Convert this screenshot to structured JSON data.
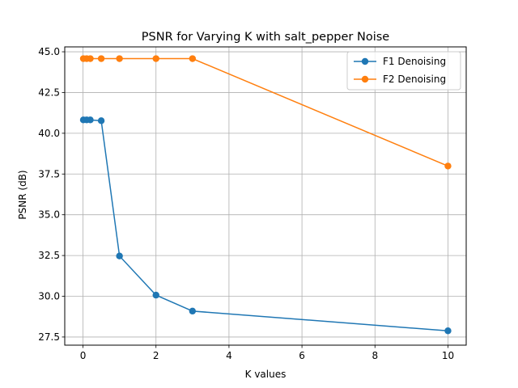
{
  "chart_data": {
    "type": "line",
    "title": "PSNR for Varying K with salt_pepper Noise",
    "xlabel": "K values",
    "ylabel": "PSNR (dB)",
    "xlim": [
      -0.5,
      10.5
    ],
    "ylim": [
      27.0,
      45.3
    ],
    "xticks": [
      0,
      2,
      4,
      6,
      8,
      10
    ],
    "xtick_labels": [
      "0",
      "2",
      "4",
      "6",
      "8",
      "10"
    ],
    "yticks": [
      27.5,
      30.0,
      32.5,
      35.0,
      37.5,
      40.0,
      42.5,
      45.0
    ],
    "ytick_labels": [
      "27.5",
      "30.0",
      "32.5",
      "35.0",
      "37.5",
      "40.0",
      "42.5",
      "45.0"
    ],
    "grid": true,
    "legend_position": "top-right",
    "x": [
      0.01,
      0.1,
      0.2,
      0.5,
      1,
      2,
      3,
      10
    ],
    "series": [
      {
        "name": "F1 Denoising",
        "color": "#1f77b4",
        "values": [
          40.82,
          40.82,
          40.82,
          40.77,
          32.47,
          30.07,
          29.09,
          27.88
        ]
      },
      {
        "name": "F2 Denoising",
        "color": "#ff7f0e",
        "values": [
          44.58,
          44.58,
          44.58,
          44.58,
          44.58,
          44.58,
          44.58,
          37.99
        ]
      }
    ]
  }
}
